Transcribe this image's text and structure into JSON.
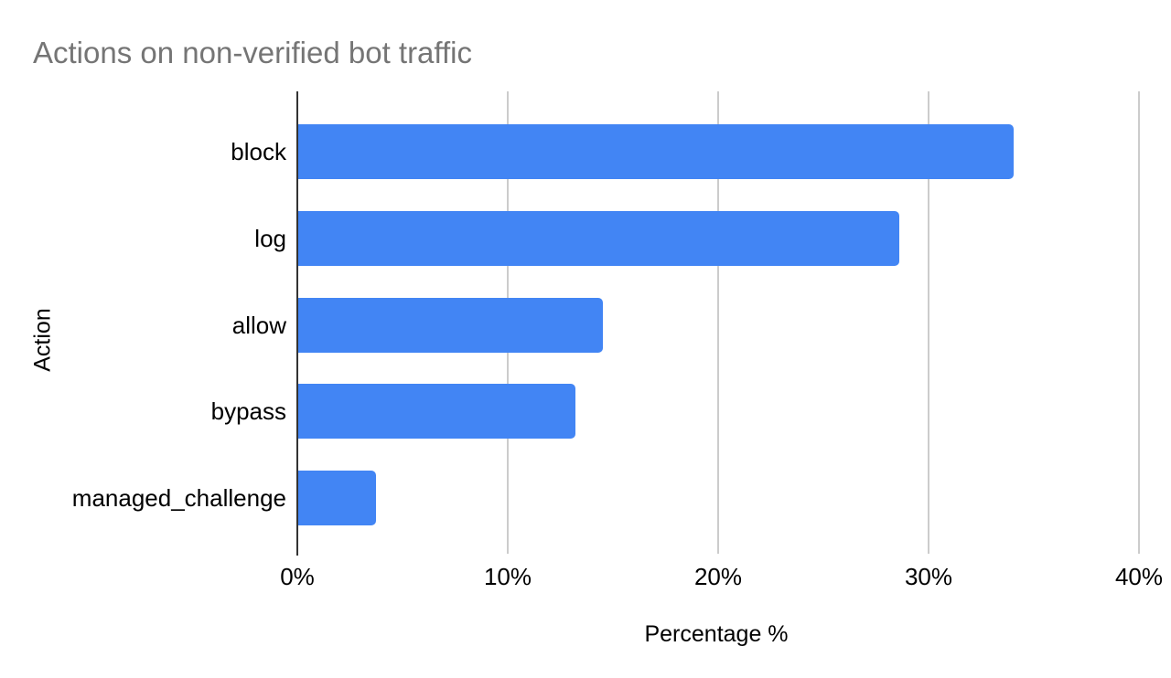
{
  "chart_data": {
    "type": "bar",
    "orientation": "horizontal",
    "title": "Actions on non-verified bot traffic",
    "categories": [
      "block",
      "log",
      "allow",
      "bypass",
      "managed_challenge"
    ],
    "values": [
      34,
      28.6,
      14.5,
      13.2,
      3.7
    ],
    "value_unit": "%",
    "xlabel": "Percentage %",
    "ylabel": "Action",
    "xlim": [
      0,
      40
    ],
    "x_ticks": [
      0,
      10,
      20,
      30,
      40
    ],
    "x_tick_labels": [
      "0%",
      "10%",
      "20%",
      "30%",
      "40%"
    ],
    "grid": "vertical gridlines at x ticks, zero axis line darker",
    "legend": "none",
    "colors": {
      "bar": "#4285f4",
      "title_text": "#757575",
      "axis_line": "#333333",
      "gridline": "#cccccc",
      "label_text": "#000000",
      "background": "#ffffff"
    }
  }
}
